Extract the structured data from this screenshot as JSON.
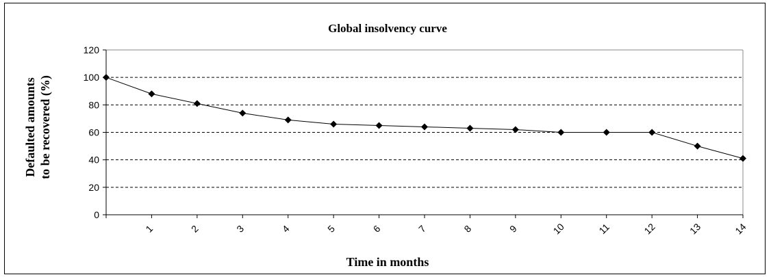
{
  "chart_data": {
    "type": "line",
    "title": "Global insolvency curve",
    "xlabel": "Time in months",
    "ylabel_lines": [
      "Defaulted amounts",
      "to be recovered (%)"
    ],
    "categories": [
      "",
      "1",
      "2",
      "3",
      "4",
      "5",
      "6",
      "7",
      "8",
      "9",
      "10",
      "11",
      "12",
      "13",
      "14"
    ],
    "values": [
      100,
      88,
      81,
      74,
      69,
      66,
      65,
      64,
      63,
      62,
      60,
      60,
      60,
      50,
      41
    ],
    "ylim": [
      0,
      120
    ],
    "yticks": [
      0,
      20,
      40,
      60,
      80,
      100,
      120
    ],
    "grid": "horizontal-dashed",
    "legend": "none",
    "colors": {
      "line": "#000000",
      "marker": "#000000",
      "grid": "#000000"
    }
  }
}
